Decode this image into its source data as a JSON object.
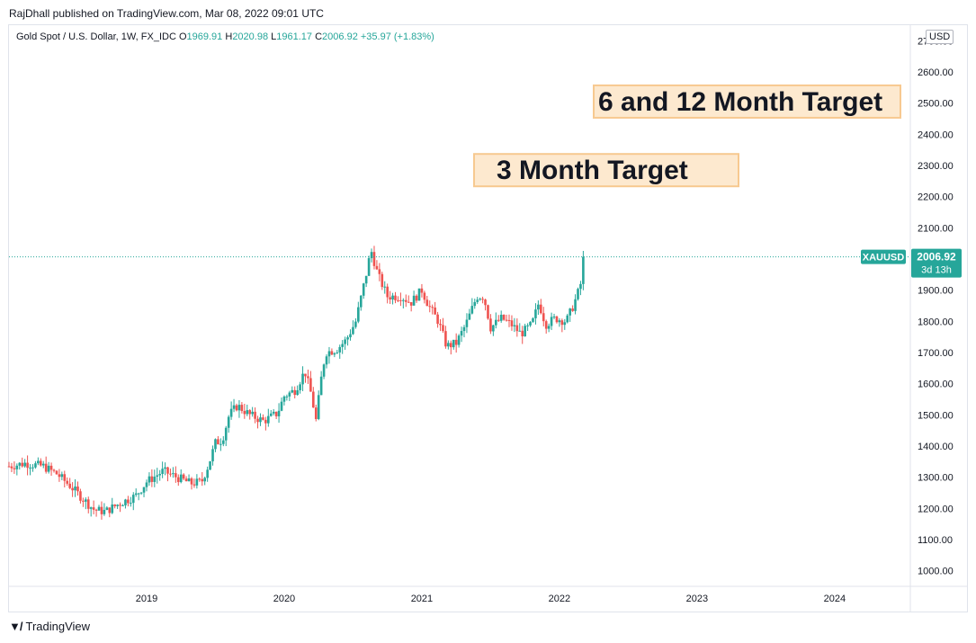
{
  "header": {
    "publisher": "RajDhall published on TradingView.com, Mar 08, 2022 09:01 UTC"
  },
  "legend": {
    "symbol": "Gold Spot / U.S. Dollar, 1W, FX_IDC",
    "o_label": "O",
    "o": "1969.91",
    "h_label": "H",
    "h": "2020.98",
    "l_label": "L",
    "l": "1961.17",
    "c_label": "C",
    "c": "2006.92",
    "change": "+35.97 (+1.83%)"
  },
  "currency_badge": "USD",
  "footer": {
    "brand": "TradingView"
  },
  "colors": {
    "up": "#26a69a",
    "down": "#ef5350",
    "annotation_fill": "#fde9cf",
    "annotation_border": "#f7c990"
  },
  "chart_data": {
    "type": "candlestick",
    "interval": "1W",
    "ylim": [
      950,
      2750
    ],
    "y_ticks": [
      "1000.00",
      "1100.00",
      "1200.00",
      "1300.00",
      "1400.00",
      "1500.00",
      "1600.00",
      "1700.00",
      "1800.00",
      "1900.00",
      "2000.00",
      "2100.00",
      "2200.00",
      "2300.00",
      "2400.00",
      "2500.00",
      "2600.00",
      "2700.00"
    ],
    "x_ticks": [
      "2019",
      "2020",
      "2021",
      "2022",
      "2023",
      "2024"
    ],
    "xlim": [
      2018.0,
      2024.55
    ],
    "price_series": [
      [
        2018.0,
        1335
      ],
      [
        2018.12,
        1345
      ],
      [
        2018.25,
        1335
      ],
      [
        2018.35,
        1310
      ],
      [
        2018.45,
        1270
      ],
      [
        2018.55,
        1225
      ],
      [
        2018.62,
        1195
      ],
      [
        2018.7,
        1190
      ],
      [
        2018.8,
        1215
      ],
      [
        2018.92,
        1240
      ],
      [
        2019.0,
        1285
      ],
      [
        2019.12,
        1320
      ],
      [
        2019.22,
        1300
      ],
      [
        2019.32,
        1280
      ],
      [
        2019.4,
        1285
      ],
      [
        2019.45,
        1340
      ],
      [
        2019.5,
        1410
      ],
      [
        2019.55,
        1420
      ],
      [
        2019.6,
        1500
      ],
      [
        2019.66,
        1530
      ],
      [
        2019.75,
        1500
      ],
      [
        2019.85,
        1480
      ],
      [
        2019.95,
        1505
      ],
      [
        2020.0,
        1560
      ],
      [
        2020.08,
        1580
      ],
      [
        2020.15,
        1640
      ],
      [
        2020.2,
        1560
      ],
      [
        2020.23,
        1480
      ],
      [
        2020.27,
        1620
      ],
      [
        2020.3,
        1700
      ],
      [
        2020.38,
        1710
      ],
      [
        2020.45,
        1740
      ],
      [
        2020.52,
        1800
      ],
      [
        2020.56,
        1880
      ],
      [
        2020.6,
        1960
      ],
      [
        2020.63,
        2030
      ],
      [
        2020.68,
        1950
      ],
      [
        2020.75,
        1880
      ],
      [
        2020.85,
        1880
      ],
      [
        2020.92,
        1860
      ],
      [
        2021.0,
        1900
      ],
      [
        2021.05,
        1850
      ],
      [
        2021.12,
        1800
      ],
      [
        2021.18,
        1720
      ],
      [
        2021.25,
        1730
      ],
      [
        2021.32,
        1790
      ],
      [
        2021.4,
        1880
      ],
      [
        2021.45,
        1880
      ],
      [
        2021.5,
        1780
      ],
      [
        2021.58,
        1810
      ],
      [
        2021.65,
        1790
      ],
      [
        2021.72,
        1760
      ],
      [
        2021.8,
        1790
      ],
      [
        2021.85,
        1860
      ],
      [
        2021.9,
        1790
      ],
      [
        2021.97,
        1810
      ],
      [
        2022.05,
        1800
      ],
      [
        2022.1,
        1850
      ],
      [
        2022.15,
        1910
      ],
      [
        2022.19,
        2006.92
      ]
    ],
    "current_price": {
      "symbol": "XAUUSD",
      "price": "2006.92",
      "countdown": "3d 13h",
      "value": 2006.92
    },
    "annotations": [
      {
        "text": "3 Month Target",
        "y": 2285
      },
      {
        "text": "6 and 12 Month Target",
        "y": 2505
      }
    ]
  }
}
